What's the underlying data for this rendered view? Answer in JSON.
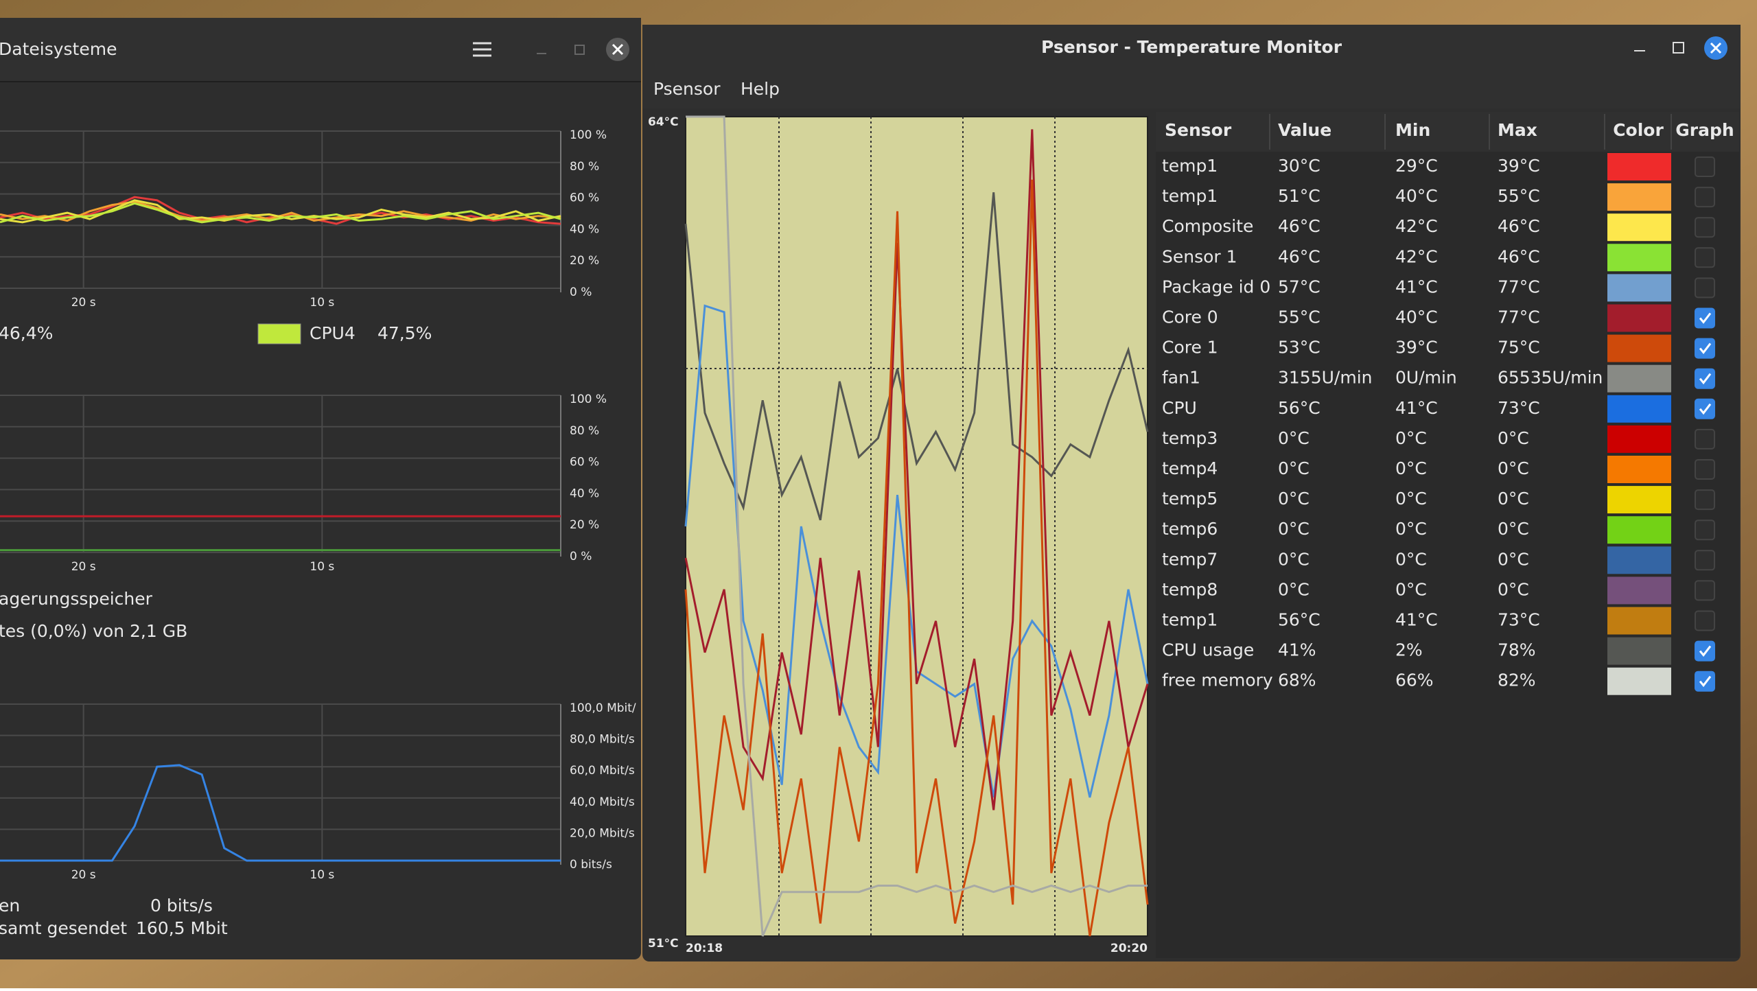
{
  "sysmon": {
    "title": "Dateisysteme",
    "cpu": {
      "ylim": [
        0,
        100
      ],
      "yticks": [
        {
          "value": 100,
          "label": "100 %"
        },
        {
          "value": 80,
          "label": "80 %"
        },
        {
          "value": 60,
          "label": "60 %"
        },
        {
          "value": 40,
          "label": "40 %"
        },
        {
          "value": 20,
          "label": "20 %"
        },
        {
          "value": 0,
          "label": "0 %"
        }
      ],
      "xlim": [
        23.5,
        0
      ],
      "xticks": [
        {
          "value": 20,
          "label": "20 s"
        },
        {
          "value": 10,
          "label": "10 s"
        }
      ],
      "series": [
        {
          "color": "#e23b3b",
          "values": [
            45,
            48,
            44,
            46,
            47,
            52,
            58,
            56,
            48,
            44,
            46,
            42,
            45,
            47,
            44,
            41,
            46,
            48,
            45,
            47,
            44,
            46,
            43,
            45,
            42,
            41
          ]
        },
        {
          "color": "#f0a030",
          "values": [
            47,
            44,
            46,
            43,
            49,
            53,
            55,
            51,
            46,
            43,
            45,
            47,
            44,
            48,
            43,
            45,
            47,
            46,
            49,
            46,
            45,
            43,
            47,
            44,
            46,
            45
          ]
        },
        {
          "color": "#e8e040",
          "values": [
            44,
            42,
            45,
            48,
            44,
            50,
            56,
            53,
            44,
            45,
            43,
            46,
            47,
            44,
            46,
            44,
            45,
            50,
            47,
            45,
            48,
            44,
            45,
            49,
            43,
            46
          ]
        },
        {
          "color": "#c0e83c",
          "values": [
            42,
            46,
            43,
            45,
            46,
            49,
            54,
            50,
            45,
            42,
            44,
            45,
            43,
            46,
            45,
            47,
            43,
            44,
            46,
            44,
            47,
            49,
            44,
            46,
            48,
            44
          ]
        }
      ],
      "legend": [
        {
          "value_label": "46,4%"
        },
        {
          "name": "CPU4",
          "color": "#c0e83c",
          "value_label": "47,5%"
        }
      ]
    },
    "memory": {
      "ylim": [
        0,
        100
      ],
      "yticks": [
        {
          "value": 100,
          "label": "100 %"
        },
        {
          "value": 80,
          "label": "80 %"
        },
        {
          "value": 60,
          "label": "60 %"
        },
        {
          "value": 40,
          "label": "40 %"
        },
        {
          "value": 20,
          "label": "20 %"
        },
        {
          "value": 0,
          "label": "0 %"
        }
      ],
      "xlim": [
        23.5,
        0
      ],
      "xticks": [
        {
          "value": 20,
          "label": "20 s"
        },
        {
          "value": 10,
          "label": "10 s"
        }
      ],
      "series": [
        {
          "color": "#c01c28",
          "values": [
            23,
            23
          ]
        },
        {
          "color": "#4a9a3a",
          "values": [
            1.5,
            1.5
          ]
        }
      ],
      "texts": [
        "agerungsspeicher",
        "tes (0,0%) von 2,1 GB"
      ]
    },
    "network": {
      "ylim": [
        0,
        100
      ],
      "yticks": [
        {
          "value": 100,
          "label": "100,0 Mbit/"
        },
        {
          "value": 80,
          "label": "80,0 Mbit/s"
        },
        {
          "value": 60,
          "label": "60,0 Mbit/s"
        },
        {
          "value": 40,
          "label": "40,0 Mbit/s"
        },
        {
          "value": 20,
          "label": "20,0 Mbit/s"
        },
        {
          "value": 0,
          "label": "0 bits/s"
        }
      ],
      "xlim": [
        23.5,
        0
      ],
      "xticks": [
        {
          "value": 20,
          "label": "20 s"
        },
        {
          "value": 10,
          "label": "10 s"
        }
      ],
      "series": [
        {
          "color": "#3584e4",
          "values": [
            0,
            0,
            0,
            0,
            0,
            0,
            22,
            60,
            61,
            55,
            8,
            0,
            0,
            0,
            0,
            0,
            0,
            0,
            0,
            0,
            0,
            0,
            0,
            0,
            0,
            0
          ]
        }
      ],
      "stats": [
        [
          "en",
          "0 bits/s"
        ],
        [
          "samt gesendet",
          "160,5 Mbit"
        ]
      ]
    }
  },
  "psensor": {
    "title": "Psensor - Temperature Monitor",
    "menu": [
      "Psensor",
      "Help"
    ],
    "graph": {
      "ylim": [
        51,
        64
      ],
      "ylabels": [
        {
          "value": 64,
          "label": "64°C"
        },
        {
          "value": 51,
          "label": "51°C"
        }
      ],
      "xlabels": [
        "20:18",
        "20:20"
      ],
      "series": [
        {
          "color": "#555753",
          "values": [
            62.3,
            59.3,
            58.5,
            57.8,
            59.5,
            58.0,
            58.6,
            57.6,
            59.8,
            58.6,
            58.9,
            60.0,
            58.5,
            59.0,
            58.4,
            59.3,
            62.8,
            58.8,
            58.6,
            58.3,
            58.8,
            58.6,
            59.5,
            60.3,
            59.0
          ]
        },
        {
          "color": "#4a90d9",
          "values": [
            57.5,
            61.0,
            60.9,
            56.0,
            54.9,
            53.4,
            57.5,
            56.0,
            54.8,
            54.0,
            53.6,
            58.0,
            55.2,
            55.0,
            54.8,
            55.0,
            53.2,
            55.4,
            56.0,
            55.6,
            54.6,
            53.2,
            54.5,
            56.5,
            55.0
          ]
        },
        {
          "color": "#a31d2c",
          "values": [
            57.0,
            55.5,
            56.5,
            54.0,
            53.5,
            55.5,
            54.2,
            57.0,
            54.5,
            56.8,
            54.0,
            62.0,
            55.0,
            56.0,
            54.0,
            55.4,
            53.0,
            56.0,
            63.8,
            54.5,
            55.5,
            54.5,
            56.0,
            54.0,
            55.0
          ]
        },
        {
          "color": "#ce4a0b",
          "values": [
            56.5,
            52.0,
            54.5,
            53.0,
            55.8,
            52.0,
            53.5,
            51.2,
            54.0,
            52.5,
            55.0,
            62.5,
            52.0,
            53.5,
            51.2,
            52.5,
            54.5,
            51.5,
            63.0,
            52.0,
            53.5,
            51.0,
            52.8,
            54.0,
            51.5
          ]
        },
        {
          "color": "#a8aaa5",
          "values": [
            64.0,
            64.0,
            64.0,
            55.0,
            51.0,
            51.7,
            51.7,
            51.7,
            51.7,
            51.7,
            51.8,
            51.8,
            51.7,
            51.8,
            51.7,
            51.8,
            51.7,
            51.8,
            51.7,
            51.8,
            51.7,
            51.8,
            51.7,
            51.8,
            51.8
          ]
        }
      ]
    },
    "table": {
      "columns": [
        "Sensor",
        "Value",
        "Min",
        "Max",
        "Color",
        "Graph"
      ],
      "rows": [
        {
          "sensor": "temp1",
          "value": "30°C",
          "min": "29°C",
          "max": "39°C",
          "color": "#ef2b2b",
          "graph": false
        },
        {
          "sensor": "temp1",
          "value": "51°C",
          "min": "40°C",
          "max": "55°C",
          "color": "#f9a43a",
          "graph": false
        },
        {
          "sensor": "Composite",
          "value": "46°C",
          "min": "42°C",
          "max": "46°C",
          "color": "#fde74c",
          "graph": false
        },
        {
          "sensor": "Sensor 1",
          "value": "46°C",
          "min": "42°C",
          "max": "46°C",
          "color": "#8ae234",
          "graph": false
        },
        {
          "sensor": "Package id 0",
          "value": "57°C",
          "min": "41°C",
          "max": "77°C",
          "color": "#729fcf",
          "graph": false
        },
        {
          "sensor": "Core 0",
          "value": "55°C",
          "min": "40°C",
          "max": "77°C",
          "color": "#a31d2c",
          "graph": true
        },
        {
          "sensor": "Core 1",
          "value": "53°C",
          "min": "39°C",
          "max": "75°C",
          "color": "#ce4a0b",
          "graph": true
        },
        {
          "sensor": "fan1",
          "value": "3155U/min",
          "min": "0U/min",
          "max": "65535U/min",
          "color": "#888a85",
          "graph": true
        },
        {
          "sensor": "CPU",
          "value": "56°C",
          "min": "41°C",
          "max": "73°C",
          "color": "#1b6ee0",
          "graph": true
        },
        {
          "sensor": "temp3",
          "value": "0°C",
          "min": "0°C",
          "max": "0°C",
          "color": "#cc0000",
          "graph": false
        },
        {
          "sensor": "temp4",
          "value": "0°C",
          "min": "0°C",
          "max": "0°C",
          "color": "#f57900",
          "graph": false
        },
        {
          "sensor": "temp5",
          "value": "0°C",
          "min": "0°C",
          "max": "0°C",
          "color": "#edd400",
          "graph": false
        },
        {
          "sensor": "temp6",
          "value": "0°C",
          "min": "0°C",
          "max": "0°C",
          "color": "#73d216",
          "graph": false
        },
        {
          "sensor": "temp7",
          "value": "0°C",
          "min": "0°C",
          "max": "0°C",
          "color": "#3465a4",
          "graph": false
        },
        {
          "sensor": "temp8",
          "value": "0°C",
          "min": "0°C",
          "max": "0°C",
          "color": "#75507b",
          "graph": false
        },
        {
          "sensor": "temp1",
          "value": "56°C",
          "min": "41°C",
          "max": "73°C",
          "color": "#c17d11",
          "graph": false
        },
        {
          "sensor": "CPU usage",
          "value": "41%",
          "min": "2%",
          "max": "78%",
          "color": "#555753",
          "graph": true
        },
        {
          "sensor": "free memory",
          "value": "68%",
          "min": "66%",
          "max": "82%",
          "color": "#d3d7cf",
          "graph": true
        }
      ]
    }
  }
}
